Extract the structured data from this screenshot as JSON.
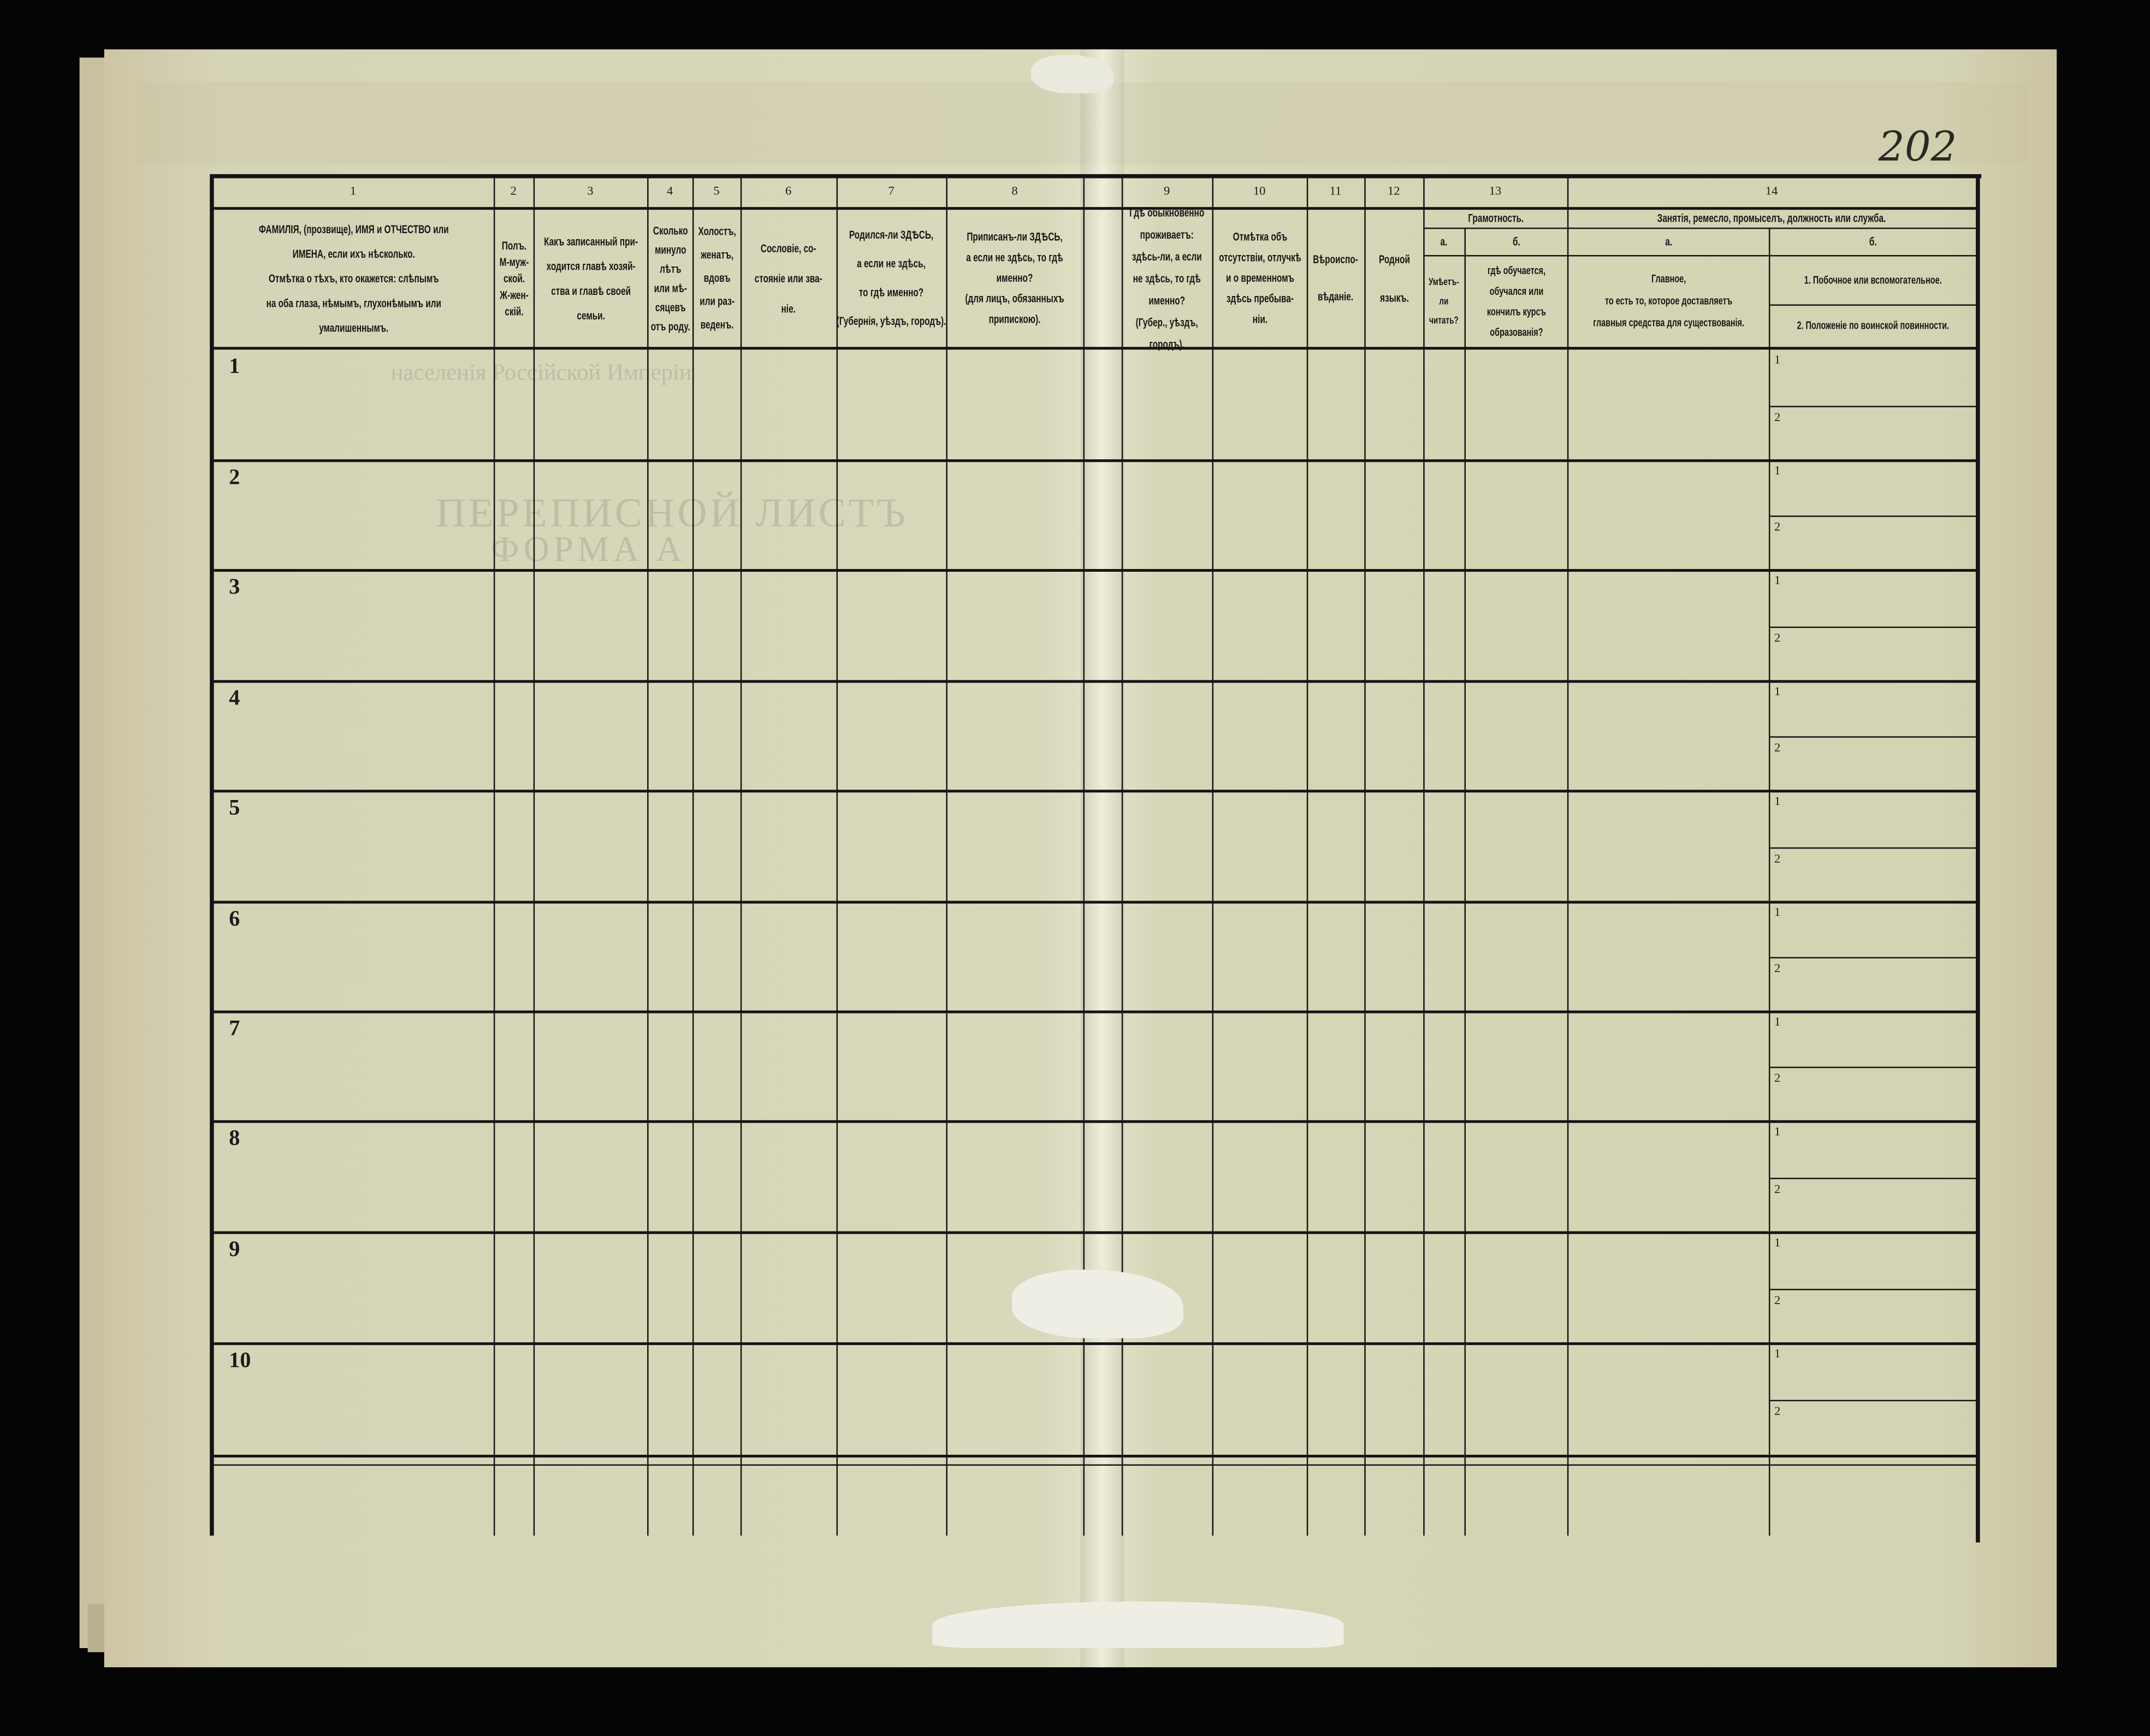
{
  "handwritten_sheet_number": "202",
  "header": {
    "columns": [
      {
        "num": "1",
        "text": "ФАМИЛІЯ, (прозвище), ИМЯ и ОТЧЕСТВО или\nИМЕНА, если ихъ нѣсколько.\nОтмѣтка о тѣхъ, кто окажется: слѣпымъ\nна оба глаза, нѣмымъ, глухонѣмымъ или\nумалишеннымъ."
      },
      {
        "num": "2",
        "text": "Полъ.\nМ-муж-\nской.\nЖ-жен-\nскій."
      },
      {
        "num": "3",
        "text": "Какъ записанный при-\nходится главѣ хозяй-\nства и главѣ своей\nсемьи."
      },
      {
        "num": "4",
        "text": "Сколько\nминуло\nлѣтъ\nили мѣ-\nсяцевъ\nотъ роду."
      },
      {
        "num": "5",
        "text": "Холостъ,\nженатъ,\nвдовъ\nили раз-\nведенъ."
      },
      {
        "num": "6",
        "text": "Сословіе, со-\nстояніе или зва-\nніе."
      },
      {
        "num": "7",
        "text": "Родился-ли ЗДѢСЬ,\nа если не здѣсь,\nто гдѣ именно?\n(Губернія, уѣздъ, городъ)."
      },
      {
        "num": "8",
        "text": "Приписанъ-ли ЗДѢСЬ,\nа если не здѣсь, то гдѣ\nименно?\n(для лицъ, обязанныхъ\nприпискою)."
      },
      {
        "num": "9",
        "text": "Гдѣ обыкновенно\nпроживаетъ:\nздѣсь-ли, а если\nне здѣсь, то гдѣ\nименно?\n(Губер., уѣздъ, городъ)."
      },
      {
        "num": "10",
        "text": "Отмѣтка объ\nотсутствіи, отлучкѣ\nи о временномъ\nздѣсь пребыва-\nніи."
      },
      {
        "num": "11",
        "text": "Вѣроиспо-\nвѣданіе."
      },
      {
        "num": "12",
        "text": "Родной\nязыкъ."
      }
    ],
    "literacy": {
      "num": "13",
      "title": "Грамотность.",
      "a_label": "а.",
      "a_text": "Умѣетъ-\nли\nчитать?",
      "b_label": "б.",
      "b_text": "гдѣ обучается,\nобучался или\nкончилъ курсъ\nобразованія?"
    },
    "occupation": {
      "num": "14",
      "title": "Занятія, ремесло, промыселъ, должность или служба.",
      "a_label": "а.",
      "a_text": "Главное,\nто есть то, которое доставляетъ\nглавныя средства для существованія.",
      "b_label": "б.",
      "b_item1": "1.  Побочное или вспомогательное.",
      "b_item2": "2.  Положеніе по воинской повинности."
    }
  },
  "rows": [
    {
      "number": "1",
      "sub": [
        "1",
        "2"
      ]
    },
    {
      "number": "2",
      "sub": [
        "1",
        "2"
      ]
    },
    {
      "number": "3",
      "sub": [
        "1",
        "2"
      ]
    },
    {
      "number": "4",
      "sub": [
        "1",
        "2"
      ]
    },
    {
      "number": "5",
      "sub": [
        "1",
        "2"
      ]
    },
    {
      "number": "6",
      "sub": [
        "1",
        "2"
      ]
    },
    {
      "number": "7",
      "sub": [
        "1",
        "2"
      ]
    },
    {
      "number": "8",
      "sub": [
        "1",
        "2"
      ]
    },
    {
      "number": "9",
      "sub": [
        "1",
        "2"
      ]
    },
    {
      "number": "10",
      "sub": [
        "1",
        "2"
      ]
    }
  ],
  "show_through": {
    "line1": "населенія Россійской Имперіи",
    "line2": "ПЕРЕПИСНОЙ ЛИСТЪ",
    "line3": "ФОРМА А"
  },
  "colors": {
    "paper": "#d6d6b8",
    "ink": "#141414",
    "background": "#050505"
  }
}
